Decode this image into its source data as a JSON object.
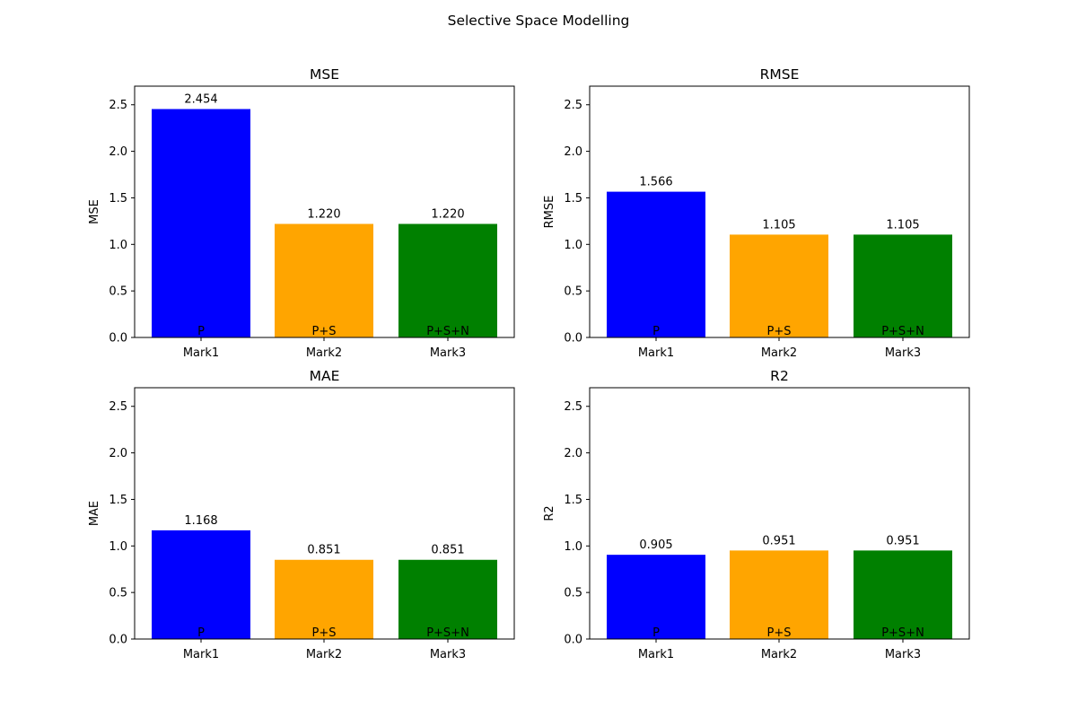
{
  "figure_title": "Selective Space Modelling",
  "colors": {
    "P": "#0000ff",
    "P+S": "#ffa500",
    "P+S+N": "#008000"
  },
  "chart_data": [
    {
      "type": "bar",
      "title": "MSE",
      "xlabel": "",
      "ylabel": "MSE",
      "categories": [
        "Mark1",
        "Mark2",
        "Mark3"
      ],
      "bar_labels": [
        "P",
        "P+S",
        "P+S+N"
      ],
      "values": [
        2.454,
        1.22,
        1.22
      ],
      "value_labels": [
        "2.454",
        "1.220",
        "1.220"
      ],
      "ylim": [
        0,
        2.7
      ],
      "yticks": [
        "0.0",
        "0.5",
        "1.0",
        "1.5",
        "2.0",
        "2.5"
      ],
      "grid": false
    },
    {
      "type": "bar",
      "title": "RMSE",
      "xlabel": "",
      "ylabel": "RMSE",
      "categories": [
        "Mark1",
        "Mark2",
        "Mark3"
      ],
      "bar_labels": [
        "P",
        "P+S",
        "P+S+N"
      ],
      "values": [
        1.566,
        1.105,
        1.105
      ],
      "value_labels": [
        "1.566",
        "1.105",
        "1.105"
      ],
      "ylim": [
        0,
        2.7
      ],
      "yticks": [
        "0.0",
        "0.5",
        "1.0",
        "1.5",
        "2.0",
        "2.5"
      ],
      "grid": false
    },
    {
      "type": "bar",
      "title": "MAE",
      "xlabel": "",
      "ylabel": "MAE",
      "categories": [
        "Mark1",
        "Mark2",
        "Mark3"
      ],
      "bar_labels": [
        "P",
        "P+S",
        "P+S+N"
      ],
      "values": [
        1.168,
        0.851,
        0.851
      ],
      "value_labels": [
        "1.168",
        "0.851",
        "0.851"
      ],
      "ylim": [
        0,
        2.7
      ],
      "yticks": [
        "0.0",
        "0.5",
        "1.0",
        "1.5",
        "2.0",
        "2.5"
      ],
      "grid": false
    },
    {
      "type": "bar",
      "title": "R2",
      "xlabel": "",
      "ylabel": "R2",
      "categories": [
        "Mark1",
        "Mark2",
        "Mark3"
      ],
      "bar_labels": [
        "P",
        "P+S",
        "P+S+N"
      ],
      "values": [
        0.905,
        0.951,
        0.951
      ],
      "value_labels": [
        "0.905",
        "0.951",
        "0.951"
      ],
      "ylim": [
        0,
        2.7
      ],
      "yticks": [
        "0.0",
        "0.5",
        "1.0",
        "1.5",
        "2.0",
        "2.5"
      ],
      "grid": false
    }
  ]
}
